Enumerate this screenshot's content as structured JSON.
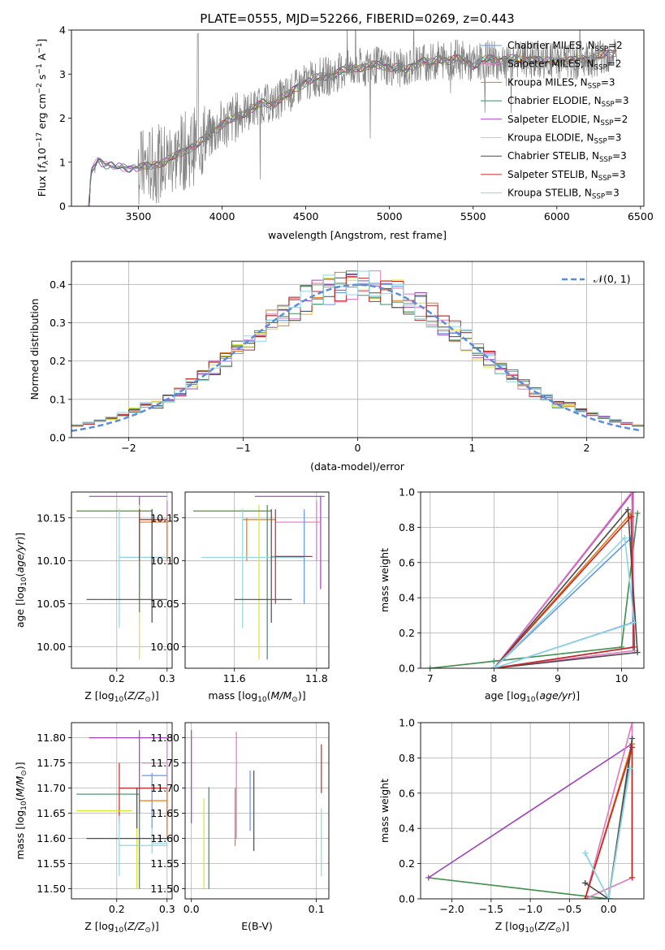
{
  "title": "PLATE=0555, MJD=52266, FIBERID=0269, z=0.443",
  "colors": {
    "chabrier_miles": "#6495ed",
    "salpeter_miles": "#e377c2",
    "kroupa_miles": "#e07b18",
    "chabrier_elodie": "#3f8f5f",
    "salpeter_elodie": "#a040c0",
    "kroupa_elodie": "#d4e62e",
    "chabrier_stelib": "#4a4a4a",
    "salpeter_stelib": "#c62828",
    "kroupa_stelib": "#8fd6e0",
    "normal": "#5b8be0",
    "data": "#808080"
  },
  "chart_data": [
    {
      "type": "line",
      "xlabel": "wavelength [Angstrom, rest frame]",
      "ylabel": "Flux [f_λ 10^-17 erg cm^-2 s^-1 A^-1]",
      "xlim": [
        3100,
        6520
      ],
      "ylim": [
        0,
        4
      ],
      "xticks": [
        3500,
        4000,
        4500,
        5000,
        5500,
        6000,
        6500
      ],
      "yticks": [
        0,
        1,
        2,
        3,
        4
      ],
      "legend_location": "upper right",
      "legend": [
        "Chabrier MILES, N_SSP=2",
        "Salpeter MILES, N_SSP=2",
        "Kroupa MILES, N_SSP=3",
        "Chabrier ELODIE, N_SSP=3",
        "Salpeter ELODIE, N_SSP=2",
        "Kroupa ELODIE, N_SSP=3",
        "Chabrier STELIB, N_SSP=3",
        "Salpeter STELIB, N_SSP=3",
        "Kroupa STELIB, N_SSP=3"
      ],
      "continuum": {
        "x": [
          3200,
          3220,
          3240,
          3260,
          3280,
          3300,
          3320,
          3360,
          3400,
          3450,
          3500,
          3550,
          3600,
          3650,
          3700,
          3750,
          3800,
          3850,
          3900,
          3950,
          4000,
          4050,
          4100,
          4150,
          4200,
          4250,
          4300,
          4350,
          4400,
          4450,
          4500,
          4550,
          4600,
          4650,
          4700,
          4750,
          4800,
          4850,
          4900,
          4950,
          5000,
          5050,
          5100,
          5150,
          5200,
          5250,
          5300,
          5350,
          5400,
          5450,
          5500,
          5550,
          5600,
          5650,
          5700,
          5750,
          5800,
          5850,
          5900,
          5950,
          6000,
          6050,
          6100,
          6150,
          6200,
          6250,
          6300,
          6350
        ],
        "y": [
          0.0,
          0.85,
          0.95,
          1.05,
          1.0,
          0.95,
          0.92,
          0.9,
          0.88,
          0.87,
          0.88,
          0.9,
          0.95,
          1.0,
          1.1,
          1.2,
          1.3,
          1.4,
          1.55,
          1.7,
          1.85,
          1.95,
          2.05,
          2.15,
          2.25,
          2.35,
          2.3,
          2.45,
          2.55,
          2.7,
          2.8,
          2.9,
          2.95,
          2.95,
          3.05,
          3.1,
          3.15,
          3.15,
          3.2,
          3.2,
          3.15,
          3.15,
          3.1,
          3.2,
          3.3,
          3.25,
          3.35,
          3.3,
          3.35,
          3.3,
          3.2,
          3.3,
          3.35,
          3.3,
          3.35,
          3.35,
          3.3,
          3.35,
          3.3,
          3.3,
          3.3,
          3.3,
          3.3,
          3.35,
          3.35,
          3.4,
          3.45,
          3.5
        ]
      }
    },
    {
      "type": "histogram",
      "xlabel": "(data-model)/error",
      "ylabel": "Normed distribution",
      "xlim": [
        -2.5,
        2.5
      ],
      "ylim": [
        0,
        0.46
      ],
      "xticks": [
        -2,
        -1,
        0,
        1,
        2
      ],
      "yticks": [
        0.0,
        0.1,
        0.2,
        0.3,
        0.4
      ],
      "legend": [
        "𝒩(0, 1)"
      ],
      "legend_location": "upper right",
      "bin_width": 0.1
    },
    {
      "type": "scatter",
      "xlabel": "Z [log10(Z/Z⊙)]",
      "ylabel": "age [log10(age/yr)]",
      "xlim": [
        0.11,
        0.31
      ],
      "ylim": [
        9.975,
        10.18
      ],
      "xticks": [
        0.2,
        0.3
      ],
      "yticks": [
        10.0,
        10.05,
        10.1,
        10.15
      ],
      "segments": [
        {
          "c": "salpeter_elodie",
          "h": [
            0.145,
            0.3,
            10.175
          ],
          "v": [
            0.245,
            10.067,
            10.175
          ]
        },
        {
          "c": "salpeter_miles",
          "h": [
            0.245,
            0.3,
            10.148
          ],
          "v": [
            0.3,
            10.1,
            10.17
          ]
        },
        {
          "c": "kroupa_miles",
          "h": [
            0.245,
            0.3,
            10.145
          ],
          "v": [
            0.3,
            10.1,
            10.15
          ]
        },
        {
          "c": "kroupa_elodie",
          "h": [
            0.12,
            0.27,
            10.158
          ],
          "v": [
            0.245,
            9.985,
            10.165
          ]
        },
        {
          "c": "chabrier_elodie",
          "h": [
            0.12,
            0.27,
            10.158
          ],
          "v": [
            0.245,
            10.04,
            10.16
          ]
        },
        {
          "c": "chabrier_miles",
          "h": [
            0.205,
            0.29,
            10.104
          ],
          "v": [
            0.27,
            10.05,
            10.16
          ]
        },
        {
          "c": "kroupa_stelib",
          "h": [
            0.205,
            0.3,
            10.104
          ],
          "v": [
            0.205,
            10.022,
            10.16
          ]
        },
        {
          "c": "chabrier_stelib",
          "h": [
            0.14,
            0.3,
            10.055
          ],
          "v": [
            0.27,
            10.028,
            10.16
          ]
        },
        {
          "c": "salpeter_stelib",
          "h": [
            0.245,
            0.3,
            10.148
          ],
          "v": [
            0.245,
            10.1,
            10.16
          ]
        }
      ]
    },
    {
      "type": "scatter",
      "xlabel": "mass [log10(M/M⊙)]",
      "ylabel": "",
      "xlim": [
        11.48,
        11.83
      ],
      "ylim": [
        9.975,
        10.18
      ],
      "xticks": [
        11.6,
        11.8
      ],
      "yticks": [
        10.0,
        10.05,
        10.1,
        10.15
      ],
      "segments": [
        {
          "c": "salpeter_elodie",
          "h": [
            11.65,
            11.82,
            10.175
          ],
          "v": [
            11.81,
            10.067,
            10.175
          ]
        },
        {
          "c": "salpeter_miles",
          "h": [
            11.7,
            11.81,
            10.145
          ],
          "v": [
            11.8,
            10.1,
            10.17
          ]
        },
        {
          "c": "kroupa_miles",
          "h": [
            11.62,
            11.7,
            10.148
          ],
          "v": [
            11.63,
            10.1,
            10.15
          ]
        },
        {
          "c": "kroupa_elodie",
          "h": [
            11.5,
            11.69,
            10.158
          ],
          "v": [
            11.66,
            9.985,
            10.165
          ]
        },
        {
          "c": "chabrier_elodie",
          "h": [
            11.5,
            11.69,
            10.158
          ],
          "v": [
            11.68,
            9.985,
            10.165
          ]
        },
        {
          "c": "chabrier_miles",
          "h": [
            11.69,
            11.77,
            10.105
          ],
          "v": [
            11.77,
            10.05,
            10.16
          ]
        },
        {
          "c": "kroupa_stelib",
          "h": [
            11.52,
            11.77,
            10.104
          ],
          "v": [
            11.62,
            10.022,
            10.16
          ]
        },
        {
          "c": "chabrier_stelib",
          "h": [
            11.6,
            11.74,
            10.055
          ],
          "v": [
            11.69,
            10.028,
            10.16
          ]
        },
        {
          "c": "salpeter_stelib",
          "h": [
            11.7,
            11.79,
            10.105
          ],
          "v": [
            11.7,
            10.05,
            10.16
          ]
        }
      ]
    },
    {
      "type": "line",
      "xlabel": "age [log10(age/yr)]",
      "ylabel": "mass weight",
      "xlim": [
        6.85,
        10.35
      ],
      "ylim": [
        0,
        1
      ],
      "xticks": [
        7,
        8,
        9,
        10
      ],
      "yticks": [
        0.0,
        0.2,
        0.4,
        0.6,
        0.8,
        1.0
      ],
      "series": [
        {
          "c": "kroupa_elodie",
          "x": [
            7.0,
            8.0,
            10.0,
            10.25,
            10.0
          ],
          "y": [
            0.0,
            0.04,
            0.12,
            0.88,
            0.12
          ]
        },
        {
          "c": "chabrier_elodie",
          "x": [
            7.0,
            8.0,
            10.0,
            10.25
          ],
          "y": [
            0.0,
            0.04,
            0.12,
            0.88
          ]
        },
        {
          "c": "salpeter_elodie",
          "x": [
            8.0,
            10.18,
            10.18,
            8.0
          ],
          "y": [
            0.0,
            1.0,
            0.12,
            0.0
          ]
        },
        {
          "c": "salpeter_miles",
          "x": [
            8.0,
            10.16,
            10.2,
            8.0
          ],
          "y": [
            0.0,
            1.0,
            0.1,
            0.0
          ]
        },
        {
          "c": "kroupa_miles",
          "x": [
            8.0,
            10.15,
            10.2,
            8.0
          ],
          "y": [
            0.0,
            0.88,
            0.12,
            0.0
          ]
        },
        {
          "c": "chabrier_miles",
          "x": [
            8.0,
            10.15,
            10.18,
            8.0
          ],
          "y": [
            0.0,
            0.74,
            0.26,
            0.0
          ]
        },
        {
          "c": "chabrier_stelib",
          "x": [
            8.0,
            10.1,
            10.25,
            8.0
          ],
          "y": [
            0.0,
            0.9,
            0.09,
            0.0
          ]
        },
        {
          "c": "salpeter_stelib",
          "x": [
            8.0,
            10.15,
            10.2,
            8.0
          ],
          "y": [
            0.0,
            0.86,
            0.12,
            0.0
          ]
        },
        {
          "c": "kroupa_stelib",
          "x": [
            8.0,
            10.05,
            10.2,
            8.0
          ],
          "y": [
            0.0,
            0.74,
            0.26,
            0.0
          ]
        }
      ]
    },
    {
      "type": "scatter",
      "xlabel": "Z [log10(Z/Z⊙)]",
      "ylabel": "mass [log10(M/M⊙)]",
      "xlim": [
        0.11,
        0.31
      ],
      "ylim": [
        11.48,
        11.83
      ],
      "xticks": [
        0.2,
        0.3
      ],
      "yticks": [
        11.5,
        11.55,
        11.6,
        11.65,
        11.7,
        11.75,
        11.8
      ],
      "segments": [
        {
          "c": "salpeter_elodie",
          "h": [
            0.145,
            0.3,
            11.8
          ],
          "v": [
            0.245,
            11.65,
            11.815
          ]
        },
        {
          "c": "salpeter_miles",
          "h": [
            0.25,
            0.3,
            11.75
          ],
          "v": [
            0.3,
            11.62,
            11.8
          ]
        },
        {
          "c": "chabrier_miles",
          "h": [
            0.25,
            0.3,
            11.725
          ],
          "v": [
            0.27,
            11.62,
            11.73
          ]
        },
        {
          "c": "kroupa_miles",
          "h": [
            0.245,
            0.3,
            11.675
          ],
          "v": [
            0.3,
            11.6,
            11.7
          ]
        },
        {
          "c": "salpeter_stelib",
          "h": [
            0.205,
            0.3,
            11.7
          ],
          "v": [
            0.205,
            11.63,
            11.75
          ]
        },
        {
          "c": "chabrier_elodie",
          "h": [
            0.12,
            0.245,
            11.688
          ],
          "v": [
            0.245,
            11.5,
            11.688
          ]
        },
        {
          "c": "kroupa_elodie",
          "h": [
            0.12,
            0.23,
            11.655
          ],
          "v": [
            0.24,
            11.5,
            11.66
          ]
        },
        {
          "c": "chabrier_stelib",
          "h": [
            0.14,
            0.3,
            11.6
          ],
          "v": [
            0.24,
            11.62,
            11.7
          ]
        },
        {
          "c": "kroupa_stelib",
          "h": [
            0.205,
            0.3,
            11.586
          ],
          "v": [
            0.205,
            11.525,
            11.645
          ]
        },
        {
          "c": "kroupa_stelib",
          "h": [
            0.27,
            0.3,
            11.59
          ],
          "v": [
            0.27,
            11.57,
            11.62
          ]
        }
      ]
    },
    {
      "type": "scatter",
      "xlabel": "E(B-V)",
      "ylabel": "",
      "xlim": [
        -0.005,
        0.11
      ],
      "ylim": [
        11.48,
        11.83
      ],
      "xticks": [
        0.0,
        0.1
      ],
      "yticks": [
        11.5,
        11.55,
        11.6,
        11.65,
        11.7,
        11.75,
        11.8
      ],
      "segments": [
        {
          "c": "salpeter_elodie",
          "v": [
            0.0,
            11.63,
            11.815
          ]
        },
        {
          "c": "salpeter_miles",
          "v": [
            0.036,
            11.6,
            11.812
          ]
        },
        {
          "c": "kroupa_miles",
          "v": [
            0.035,
            11.585,
            11.7
          ]
        },
        {
          "c": "kroupa_elodie",
          "v": [
            0.01,
            11.5,
            11.68
          ]
        },
        {
          "c": "chabrier_elodie",
          "v": [
            0.014,
            11.5,
            11.702
          ]
        },
        {
          "c": "chabrier_miles",
          "v": [
            0.047,
            11.615,
            11.735
          ]
        },
        {
          "c": "chabrier_stelib",
          "v": [
            0.05,
            11.575,
            11.735
          ]
        },
        {
          "c": "salpeter_stelib",
          "v": [
            0.104,
            11.69,
            11.787
          ]
        },
        {
          "c": "kroupa_stelib",
          "v": [
            0.104,
            11.525,
            11.66
          ]
        }
      ]
    },
    {
      "type": "line",
      "xlabel": "Z [log10(Z/Z⊙)]",
      "ylabel": "mass weight",
      "xlim": [
        -2.4,
        0.45
      ],
      "ylim": [
        0,
        1
      ],
      "xticks": [
        -2.0,
        -1.5,
        -1.0,
        -0.5,
        0.0
      ],
      "yticks": [
        0.0,
        0.2,
        0.4,
        0.6,
        0.8,
        1.0
      ],
      "series": [
        {
          "c": "kroupa_elodie",
          "x": [
            -2.3,
            0.0,
            0.3
          ],
          "y": [
            0.12,
            0.0,
            0.88
          ]
        },
        {
          "c": "chabrier_elodie",
          "x": [
            -2.3,
            0.0,
            0.3
          ],
          "y": [
            0.12,
            0.0,
            0.88
          ]
        },
        {
          "c": "salpeter_elodie",
          "x": [
            -2.3,
            0.3,
            0.3
          ],
          "y": [
            0.12,
            0.88,
            0.88
          ]
        },
        {
          "c": "salpeter_miles",
          "x": [
            -0.3,
            0.3,
            0.3,
            -0.3
          ],
          "y": [
            0.0,
            1.0,
            0.12,
            0.0
          ]
        },
        {
          "c": "kroupa_miles",
          "x": [
            -0.3,
            0.3,
            0.3
          ],
          "y": [
            0.0,
            0.88,
            0.12
          ]
        },
        {
          "c": "chabrier_stelib",
          "x": [
            -0.3,
            0.0,
            0.3,
            0.0,
            -0.3
          ],
          "y": [
            0.09,
            0.0,
            0.91,
            0.0,
            0.09
          ]
        },
        {
          "c": "salpeter_stelib",
          "x": [
            -0.3,
            0.3,
            0.3
          ],
          "y": [
            0.0,
            0.86,
            0.12
          ]
        },
        {
          "c": "chabrier_miles",
          "x": [
            -0.3,
            0.0,
            0.27
          ],
          "y": [
            0.26,
            0.0,
            0.74
          ]
        },
        {
          "c": "kroupa_stelib",
          "x": [
            -0.3,
            0.0,
            0.27
          ],
          "y": [
            0.26,
            0.0,
            0.74
          ]
        }
      ]
    }
  ]
}
